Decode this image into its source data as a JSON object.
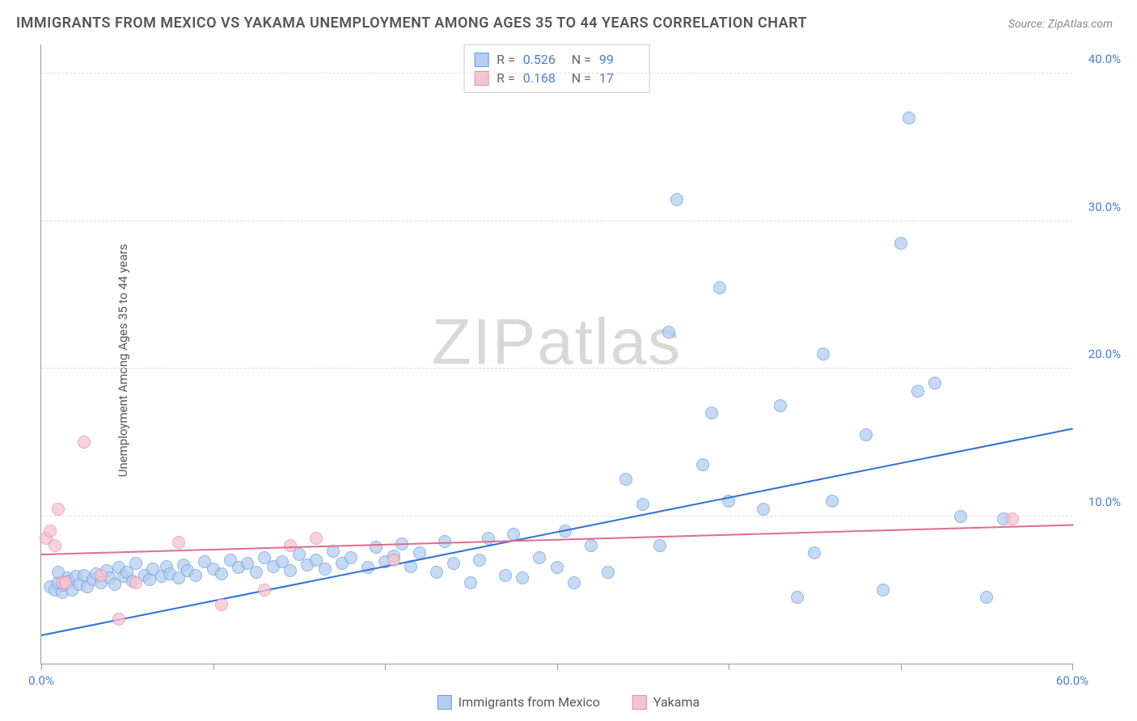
{
  "chart": {
    "type": "scatter",
    "title": "IMMIGRANTS FROM MEXICO VS YAKAMA UNEMPLOYMENT AMONG AGES 35 TO 44 YEARS CORRELATION CHART",
    "source": "Source: ZipAtlas.com",
    "ylabel": "Unemployment Among Ages 35 to 44 years",
    "watermark": "ZIPatlas",
    "watermark_prefix": "ZIP",
    "watermark_suffix": "atlas",
    "xlim": [
      0,
      60
    ],
    "ylim": [
      0,
      42
    ],
    "xtick_positions": [
      0,
      10,
      20,
      30,
      40,
      50,
      60
    ],
    "xtick_labels": {
      "0": "0.0%",
      "60": "60.0%"
    },
    "ytick_positions": [
      10,
      20,
      30,
      40
    ],
    "ytick_labels": {
      "10": "10.0%",
      "20": "20.0%",
      "30": "30.0%",
      "40": "40.0%"
    },
    "grid_color": "#dddddd",
    "background_color": "#ffffff",
    "axis_color": "#999999",
    "title_fontsize": 18,
    "title_color": "#555555",
    "label_fontsize": 15,
    "tick_color_blue": "#4a7bd8",
    "marker_radius": 8,
    "series": [
      {
        "name": "Immigrants from Mexico",
        "fill_color": "#b3cef0",
        "stroke_color": "#6b9be0",
        "line_color": "#2e6fd8",
        "r": "0.526",
        "n": "99",
        "trend": {
          "x1": 0,
          "y1": 2.0,
          "x2": 60,
          "y2": 16.0
        },
        "points": [
          [
            0.5,
            5.2
          ],
          [
            0.8,
            5.0
          ],
          [
            1.0,
            5.5
          ],
          [
            1.2,
            4.8
          ],
          [
            1.5,
            5.8
          ],
          [
            1.0,
            6.2
          ],
          [
            1.3,
            5.3
          ],
          [
            1.6,
            5.6
          ],
          [
            1.8,
            5.0
          ],
          [
            2.0,
            5.9
          ],
          [
            2.2,
            5.4
          ],
          [
            2.5,
            6.0
          ],
          [
            2.7,
            5.2
          ],
          [
            3.0,
            5.7
          ],
          [
            3.2,
            6.1
          ],
          [
            3.5,
            5.5
          ],
          [
            3.8,
            6.3
          ],
          [
            4.0,
            5.8
          ],
          [
            4.3,
            5.4
          ],
          [
            4.5,
            6.5
          ],
          [
            4.8,
            5.9
          ],
          [
            5.0,
            6.2
          ],
          [
            5.3,
            5.6
          ],
          [
            5.5,
            6.8
          ],
          [
            6.0,
            6.0
          ],
          [
            6.3,
            5.7
          ],
          [
            6.5,
            6.4
          ],
          [
            7.0,
            5.9
          ],
          [
            7.3,
            6.6
          ],
          [
            7.5,
            6.1
          ],
          [
            8.0,
            5.8
          ],
          [
            8.3,
            6.7
          ],
          [
            8.5,
            6.3
          ],
          [
            9.0,
            6.0
          ],
          [
            9.5,
            6.9
          ],
          [
            10.0,
            6.4
          ],
          [
            10.5,
            6.1
          ],
          [
            11.0,
            7.0
          ],
          [
            11.5,
            6.5
          ],
          [
            12.0,
            6.8
          ],
          [
            12.5,
            6.2
          ],
          [
            13.0,
            7.2
          ],
          [
            13.5,
            6.6
          ],
          [
            14.0,
            6.9
          ],
          [
            14.5,
            6.3
          ],
          [
            15.0,
            7.4
          ],
          [
            15.5,
            6.7
          ],
          [
            16.0,
            7.0
          ],
          [
            16.5,
            6.4
          ],
          [
            17.0,
            7.6
          ],
          [
            17.5,
            6.8
          ],
          [
            18.0,
            7.2
          ],
          [
            19.0,
            6.5
          ],
          [
            19.5,
            7.9
          ],
          [
            20.0,
            6.9
          ],
          [
            20.5,
            7.3
          ],
          [
            21.0,
            8.1
          ],
          [
            21.5,
            6.6
          ],
          [
            22.0,
            7.5
          ],
          [
            23.0,
            6.2
          ],
          [
            23.5,
            8.3
          ],
          [
            24.0,
            6.8
          ],
          [
            25.0,
            5.5
          ],
          [
            25.5,
            7.0
          ],
          [
            26.0,
            8.5
          ],
          [
            27.0,
            6.0
          ],
          [
            27.5,
            8.8
          ],
          [
            28.0,
            5.8
          ],
          [
            29.0,
            7.2
          ],
          [
            30.0,
            6.5
          ],
          [
            30.5,
            9.0
          ],
          [
            31.0,
            5.5
          ],
          [
            32.0,
            8.0
          ],
          [
            33.0,
            6.2
          ],
          [
            34.0,
            12.5
          ],
          [
            35.0,
            10.8
          ],
          [
            36.0,
            8.0
          ],
          [
            36.5,
            22.5
          ],
          [
            37.0,
            31.5
          ],
          [
            38.5,
            13.5
          ],
          [
            39.0,
            17.0
          ],
          [
            39.5,
            25.5
          ],
          [
            40.0,
            11.0
          ],
          [
            42.0,
            10.5
          ],
          [
            43.0,
            17.5
          ],
          [
            44.0,
            4.5
          ],
          [
            45.0,
            7.5
          ],
          [
            45.5,
            21.0
          ],
          [
            46.0,
            11.0
          ],
          [
            48.0,
            15.5
          ],
          [
            49.0,
            5.0
          ],
          [
            50.0,
            28.5
          ],
          [
            50.5,
            37.0
          ],
          [
            51.0,
            18.5
          ],
          [
            52.0,
            19.0
          ],
          [
            53.5,
            10.0
          ],
          [
            55.0,
            4.5
          ],
          [
            56.0,
            9.8
          ]
        ]
      },
      {
        "name": "Yakama",
        "fill_color": "#f5c4d0",
        "stroke_color": "#e88ba5",
        "line_color": "#e06b8f",
        "r": "0.168",
        "n": "17",
        "trend": {
          "x1": 0,
          "y1": 7.5,
          "x2": 60,
          "y2": 9.5
        },
        "points": [
          [
            0.3,
            8.5
          ],
          [
            0.5,
            9.0
          ],
          [
            0.8,
            8.0
          ],
          [
            1.0,
            10.5
          ],
          [
            1.2,
            5.5
          ],
          [
            1.4,
            5.5
          ],
          [
            2.5,
            15.0
          ],
          [
            3.5,
            6.0
          ],
          [
            4.5,
            3.0
          ],
          [
            5.5,
            5.5
          ],
          [
            8.0,
            8.2
          ],
          [
            10.5,
            4.0
          ],
          [
            13.0,
            5.0
          ],
          [
            14.5,
            8.0
          ],
          [
            16.0,
            8.5
          ],
          [
            20.5,
            7.0
          ],
          [
            56.5,
            9.8
          ]
        ]
      }
    ],
    "legend": {
      "items": [
        {
          "label": "Immigrants from Mexico",
          "fill": "#b3cef0",
          "stroke": "#6b9be0"
        },
        {
          "label": "Yakama",
          "fill": "#f5c4d0",
          "stroke": "#e88ba5"
        }
      ]
    }
  }
}
